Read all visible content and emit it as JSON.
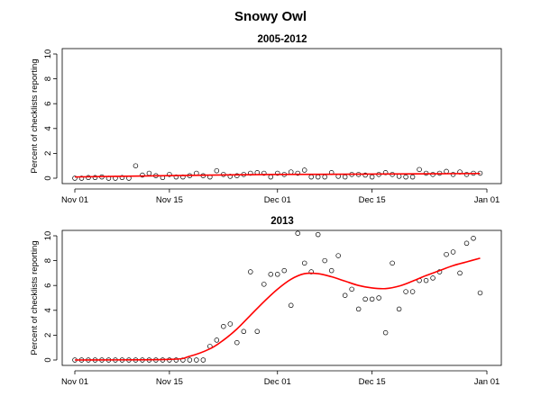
{
  "chart_data": {
    "title": "Snowy Owl",
    "xlim": [
      0,
      61
    ],
    "x_ticks": [
      {
        "x": 0,
        "label": "Nov 01"
      },
      {
        "x": 14,
        "label": "Nov 15"
      },
      {
        "x": 30,
        "label": "Dec 01"
      },
      {
        "x": 44,
        "label": "Dec 15"
      },
      {
        "x": 61,
        "label": "Jan 01"
      }
    ],
    "fit_color": "#ff0000",
    "point_color": "#000000",
    "panels": [
      {
        "type": "scatter",
        "title": "2005-2012",
        "ylabel": "Percent of checklists reporting",
        "ylim": [
          0,
          10
        ],
        "y_ticks": [
          0,
          2,
          4,
          6,
          8,
          10
        ],
        "x": [
          0,
          1,
          2,
          3,
          4,
          5,
          6,
          7,
          8,
          9,
          10,
          11,
          12,
          13,
          14,
          15,
          16,
          17,
          18,
          19,
          20,
          21,
          22,
          23,
          24,
          25,
          26,
          27,
          28,
          29,
          30,
          31,
          32,
          33,
          34,
          35,
          36,
          37,
          38,
          39,
          40,
          41,
          42,
          43,
          44,
          45,
          46,
          47,
          48,
          49,
          50,
          51,
          52,
          53,
          54,
          55,
          56,
          57,
          58,
          59,
          60
        ],
        "values": [
          0.0,
          0.0,
          0.05,
          0.05,
          0.1,
          0.0,
          0.0,
          0.05,
          0.0,
          1.0,
          0.25,
          0.4,
          0.2,
          0.05,
          0.3,
          0.1,
          0.1,
          0.2,
          0.4,
          0.2,
          0.1,
          0.6,
          0.3,
          0.15,
          0.2,
          0.3,
          0.4,
          0.45,
          0.4,
          0.1,
          0.4,
          0.3,
          0.5,
          0.4,
          0.65,
          0.1,
          0.1,
          0.1,
          0.45,
          0.15,
          0.1,
          0.3,
          0.3,
          0.25,
          0.1,
          0.3,
          0.45,
          0.3,
          0.15,
          0.1,
          0.1,
          0.7,
          0.4,
          0.3,
          0.4,
          0.55,
          0.3,
          0.5,
          0.3,
          0.4,
          0.4
        ],
        "fit_x": [
          0,
          10,
          20,
          30,
          40,
          50,
          60
        ],
        "fit_values": [
          0.1,
          0.18,
          0.25,
          0.3,
          0.32,
          0.35,
          0.38
        ]
      },
      {
        "type": "scatter",
        "title": "2013",
        "ylabel": "Percent of checklists reporting",
        "ylim": [
          0,
          10
        ],
        "y_ticks": [
          0,
          2,
          4,
          6,
          8,
          10
        ],
        "x": [
          0,
          1,
          2,
          3,
          4,
          5,
          6,
          7,
          8,
          9,
          10,
          11,
          12,
          13,
          14,
          15,
          16,
          17,
          18,
          19,
          20,
          21,
          22,
          23,
          24,
          25,
          26,
          27,
          28,
          29,
          30,
          31,
          32,
          33,
          34,
          35,
          36,
          37,
          38,
          39,
          40,
          41,
          42,
          43,
          44,
          45,
          46,
          47,
          48,
          49,
          50,
          51,
          52,
          53,
          54,
          55,
          56,
          57,
          58,
          59,
          60
        ],
        "values": [
          0,
          0,
          0,
          0,
          0,
          0,
          0,
          0,
          0,
          0,
          0,
          0,
          0,
          0,
          0,
          0,
          0,
          0,
          0,
          0,
          1.1,
          1.6,
          2.7,
          2.9,
          1.4,
          2.3,
          7.1,
          2.3,
          6.1,
          6.9,
          6.9,
          7.2,
          4.4,
          10.2,
          7.8,
          7.1,
          10.1,
          8.0,
          7.2,
          8.4,
          5.2,
          5.7,
          4.1,
          4.9,
          4.9,
          5.0,
          2.2,
          7.8,
          4.1,
          5.5,
          5.5,
          6.4,
          6.4,
          6.6,
          7.1,
          8.5,
          8.7,
          7.0,
          9.4,
          9.8,
          5.4
        ],
        "fit_x": [
          0,
          14,
          17,
          20,
          22,
          24,
          26,
          28,
          30,
          32,
          34,
          36,
          38,
          40,
          42,
          44,
          46,
          48,
          50,
          52,
          54,
          56,
          58,
          60
        ],
        "fit_values": [
          0,
          0.05,
          0.3,
          0.9,
          1.6,
          2.5,
          3.6,
          4.7,
          5.7,
          6.5,
          6.95,
          6.95,
          6.7,
          6.35,
          6.0,
          5.8,
          5.75,
          5.95,
          6.35,
          6.8,
          7.2,
          7.6,
          7.9,
          8.2
        ]
      }
    ]
  }
}
